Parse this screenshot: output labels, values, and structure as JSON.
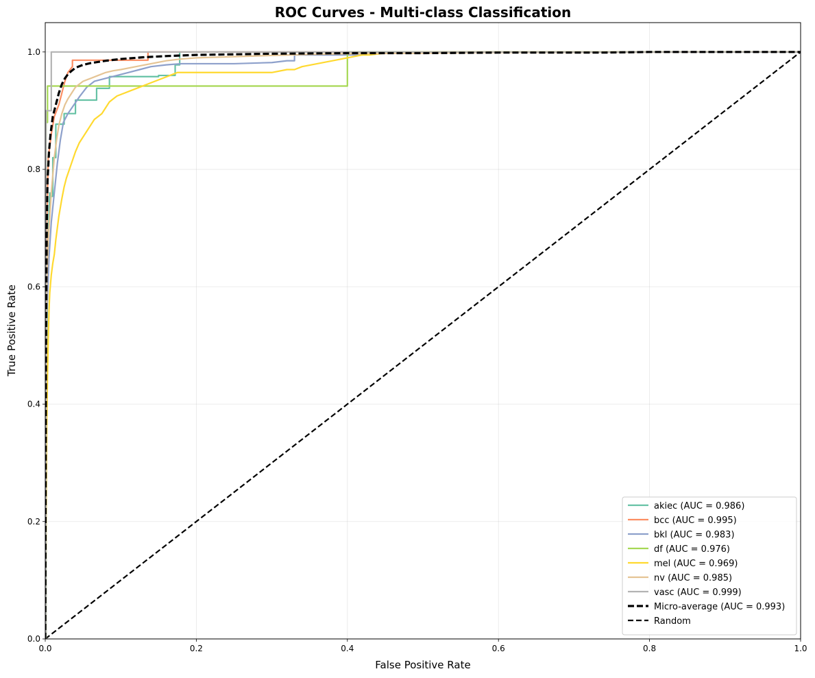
{
  "chart_data": {
    "type": "line",
    "title": "ROC Curves - Multi-class Classification",
    "xlabel": "False Positive Rate",
    "ylabel": "True Positive Rate",
    "xlim": [
      0.0,
      1.0
    ],
    "ylim": [
      0.0,
      1.05
    ],
    "xticks": [
      0.0,
      0.2,
      0.4,
      0.6,
      0.8,
      1.0
    ],
    "yticks": [
      0.0,
      0.2,
      0.4,
      0.6,
      0.8,
      1.0
    ],
    "xtick_labels": [
      "0.0",
      "0.2",
      "0.4",
      "0.6",
      "0.8",
      "1.0"
    ],
    "ytick_labels": [
      "0.0",
      "0.2",
      "0.4",
      "0.6",
      "0.8",
      "1.0"
    ],
    "grid": true,
    "legend_position": "bottom-right",
    "series": [
      {
        "name": "akiec (AUC = 0.986)",
        "color": "#66c2a5",
        "dash": "solid",
        "x": [
          0.0,
          0.002,
          0.004,
          0.006,
          0.006,
          0.01,
          0.01,
          0.014,
          0.014,
          0.025,
          0.025,
          0.04,
          0.04,
          0.068,
          0.068,
          0.085,
          0.085,
          0.15,
          0.15,
          0.172,
          0.172,
          0.178,
          0.178,
          0.25,
          1.0
        ],
        "y": [
          0.0,
          0.5,
          0.68,
          0.76,
          0.754,
          0.754,
          0.82,
          0.82,
          0.877,
          0.877,
          0.895,
          0.895,
          0.918,
          0.918,
          0.938,
          0.938,
          0.958,
          0.958,
          0.96,
          0.96,
          0.978,
          0.978,
          1.0,
          1.0,
          1.0
        ]
      },
      {
        "name": "bcc (AUC = 0.995)",
        "color": "#fc8d62",
        "dash": "solid",
        "x": [
          0.0,
          0.002,
          0.004,
          0.008,
          0.012,
          0.018,
          0.022,
          0.026,
          0.03,
          0.036,
          0.036,
          0.13,
          0.136,
          0.136,
          1.0
        ],
        "y": [
          0.0,
          0.7,
          0.82,
          0.86,
          0.89,
          0.91,
          0.93,
          0.95,
          0.965,
          0.975,
          0.986,
          0.986,
          0.986,
          1.0,
          1.0
        ]
      },
      {
        "name": "bkl (AUC = 0.983)",
        "color": "#8da0cb",
        "dash": "solid",
        "x": [
          0.0,
          0.002,
          0.005,
          0.008,
          0.012,
          0.016,
          0.02,
          0.024,
          0.03,
          0.038,
          0.046,
          0.055,
          0.065,
          0.08,
          0.095,
          0.11,
          0.125,
          0.14,
          0.16,
          0.18,
          0.2,
          0.25,
          0.3,
          0.32,
          0.33,
          0.33,
          0.42,
          0.42,
          1.0
        ],
        "y": [
          0.0,
          0.55,
          0.65,
          0.71,
          0.76,
          0.81,
          0.85,
          0.88,
          0.895,
          0.91,
          0.925,
          0.94,
          0.95,
          0.955,
          0.96,
          0.965,
          0.97,
          0.975,
          0.978,
          0.98,
          0.98,
          0.98,
          0.982,
          0.985,
          0.985,
          0.995,
          0.995,
          1.0,
          1.0
        ]
      },
      {
        "name": "df (AUC = 0.976)",
        "color": "#a6d854",
        "dash": "solid",
        "x": [
          0.0,
          0.001,
          0.001,
          0.003,
          0.003,
          0.4,
          0.4,
          1.0
        ],
        "y": [
          0.0,
          0.0,
          0.88,
          0.88,
          0.942,
          0.942,
          1.0,
          1.0
        ],
        "dummy": null
      },
      {
        "name": "mel (AUC = 0.969)",
        "color": "#ffd92f",
        "dash": "solid",
        "x": [
          0.0,
          0.001,
          0.002,
          0.003,
          0.004,
          0.005,
          0.006,
          0.008,
          0.01,
          0.012,
          0.014,
          0.016,
          0.018,
          0.02,
          0.022,
          0.025,
          0.028,
          0.032,
          0.036,
          0.04,
          0.045,
          0.05,
          0.055,
          0.06,
          0.065,
          0.07,
          0.075,
          0.08,
          0.085,
          0.09,
          0.095,
          0.105,
          0.115,
          0.125,
          0.135,
          0.145,
          0.155,
          0.165,
          0.175,
          0.2,
          0.25,
          0.3,
          0.32,
          0.33,
          0.34,
          0.36,
          0.38,
          0.4,
          0.42,
          0.43,
          0.45,
          0.5,
          1.0
        ],
        "y": [
          0.0,
          0.15,
          0.36,
          0.45,
          0.51,
          0.56,
          0.59,
          0.62,
          0.64,
          0.655,
          0.68,
          0.7,
          0.72,
          0.735,
          0.75,
          0.77,
          0.785,
          0.8,
          0.815,
          0.83,
          0.845,
          0.855,
          0.865,
          0.875,
          0.885,
          0.89,
          0.895,
          0.905,
          0.915,
          0.92,
          0.925,
          0.93,
          0.935,
          0.94,
          0.945,
          0.95,
          0.955,
          0.96,
          0.965,
          0.965,
          0.965,
          0.965,
          0.97,
          0.97,
          0.975,
          0.98,
          0.985,
          0.99,
          0.995,
          0.995,
          0.998,
          1.0,
          1.0
        ]
      },
      {
        "name": "nv (AUC = 0.985)",
        "color": "#e5c494",
        "dash": "solid",
        "x": [
          0.0,
          0.002,
          0.004,
          0.006,
          0.008,
          0.01,
          0.012,
          0.015,
          0.018,
          0.022,
          0.026,
          0.03,
          0.035,
          0.04,
          0.045,
          0.05,
          0.06,
          0.07,
          0.08,
          0.09,
          0.1,
          0.12,
          0.14,
          0.16,
          0.18,
          0.2,
          0.25,
          0.3,
          0.35,
          0.4,
          0.5,
          0.57,
          1.0
        ],
        "y": [
          0.0,
          0.6,
          0.68,
          0.72,
          0.76,
          0.79,
          0.82,
          0.85,
          0.875,
          0.895,
          0.91,
          0.92,
          0.93,
          0.94,
          0.945,
          0.95,
          0.955,
          0.96,
          0.965,
          0.968,
          0.97,
          0.975,
          0.98,
          0.985,
          0.988,
          0.99,
          0.992,
          0.994,
          0.996,
          0.997,
          0.998,
          0.999,
          1.0
        ]
      },
      {
        "name": "vasc (AUC = 0.999)",
        "color": "#b3b3b3",
        "dash": "solid",
        "x": [
          0.0,
          0.001,
          0.001,
          0.008,
          0.008,
          1.0
        ],
        "y": [
          0.0,
          0.0,
          0.9,
          0.9,
          1.0,
          1.0
        ]
      },
      {
        "name": "Micro-average (AUC = 0.993)",
        "color": "#000000",
        "dash": "dashed-thick",
        "x": [
          0.0,
          0.001,
          0.002,
          0.003,
          0.005,
          0.007,
          0.01,
          0.014,
          0.018,
          0.022,
          0.026,
          0.03,
          0.035,
          0.04,
          0.05,
          0.06,
          0.08,
          0.1,
          0.13,
          0.16,
          0.2,
          0.3,
          0.4,
          0.5,
          0.6,
          0.74,
          0.8,
          1.0
        ],
        "y": [
          0.0,
          0.5,
          0.7,
          0.78,
          0.83,
          0.86,
          0.89,
          0.91,
          0.93,
          0.945,
          0.955,
          0.962,
          0.968,
          0.973,
          0.978,
          0.981,
          0.985,
          0.988,
          0.991,
          0.993,
          0.995,
          0.997,
          0.998,
          0.998,
          0.999,
          0.999,
          1.0,
          1.0
        ]
      },
      {
        "name": "Random",
        "color": "#000000",
        "dash": "dashed",
        "x": [
          0.0,
          1.0
        ],
        "y": [
          0.0,
          1.0
        ]
      }
    ]
  }
}
